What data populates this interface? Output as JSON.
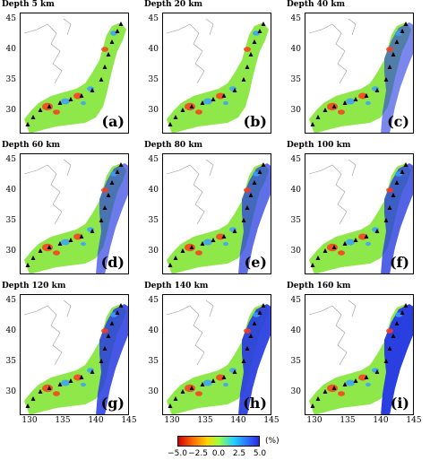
{
  "panels": [
    {
      "title": "Depth 5 km",
      "label": "(a)"
    },
    {
      "title": "Depth 20 km",
      "label": "(b)"
    },
    {
      "title": "Depth 40 km",
      "label": "(c)"
    },
    {
      "title": "Depth 60 km",
      "label": "(d)"
    },
    {
      "title": "Depth 80 km",
      "label": "(e)"
    },
    {
      "title": "Depth 100 km",
      "label": "(f)"
    },
    {
      "title": "Depth 120 km",
      "label": "(g)"
    },
    {
      "title": "Depth 140 km",
      "label": "(h)"
    },
    {
      "title": "Depth 160 km",
      "label": "(i)"
    }
  ],
  "y_ticks": [
    "45",
    "40",
    "35",
    "30"
  ],
  "x_ticks": [
    "130",
    "135",
    "140",
    "145"
  ],
  "colorbar": {
    "ticks": [
      "−5.0",
      "−2.5",
      "0.0",
      "2.5",
      "5.0"
    ],
    "unit": "(%)"
  },
  "colors": {
    "background_field": "#8fe84a",
    "slab": "#2a3fe0",
    "low_velocity": "#ff3a1a",
    "high_velocity": "#3aa0ff"
  }
}
